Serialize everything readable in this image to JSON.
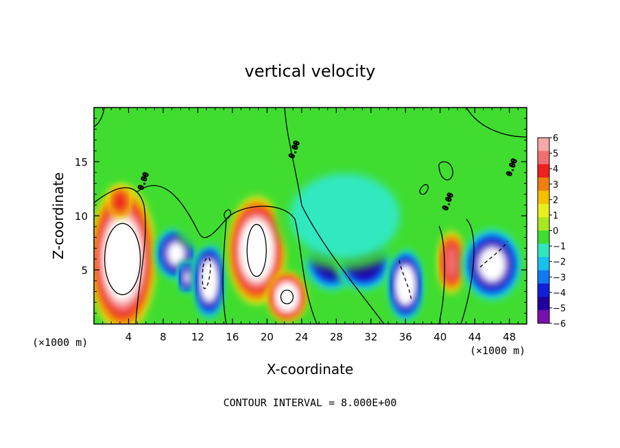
{
  "chart_data": {
    "type": "heatmap",
    "title": "vertical velocity",
    "xlabel": "X-coordinate",
    "ylabel": "Z-coordinate",
    "x_unit_left": "(×1000 m)",
    "x_unit_right": "(×1000 m)",
    "xlim": [
      0,
      50
    ],
    "ylim": [
      0,
      20
    ],
    "x_ticks": [
      4,
      8,
      12,
      16,
      20,
      24,
      28,
      32,
      36,
      40,
      44,
      48
    ],
    "y_ticks": [
      5,
      10,
      15
    ],
    "colorbar": {
      "levels": [
        6,
        5,
        4,
        3,
        2,
        1,
        0,
        -1,
        -2,
        -3,
        -4,
        -5,
        -6
      ],
      "labels": [
        "6",
        "5",
        "4",
        "3",
        "2",
        "1",
        "0",
        "−1",
        "−2",
        "−3",
        "−4",
        "−5",
        "−6"
      ],
      "colors": [
        "#f7a8a8",
        "#f07070",
        "#ee2020",
        "#f08010",
        "#f5c000",
        "#e8ee20",
        "#a8e820",
        "#40dd30",
        "#30e8c0",
        "#18c0f0",
        "#1078f0",
        "#1020d8",
        "#2000a0",
        "#7a10b0"
      ]
    },
    "contour_label": "0.00",
    "footer": "CONTOUR INTERVAL = 8.000E+00",
    "cells": [
      {
        "x": 3.3,
        "z": 6.0,
        "rx": 2.8,
        "rz": 5.5,
        "w": 9
      },
      {
        "x": 3.0,
        "z": 11.3,
        "rx": 0.9,
        "rz": 1.2,
        "w": 4
      },
      {
        "x": 9.5,
        "z": 6.5,
        "rx": 1.8,
        "rz": 2.0,
        "w": -7
      },
      {
        "x": 10.8,
        "z": 4.3,
        "rx": 0.8,
        "rz": 1.2,
        "w": -7
      },
      {
        "x": 13.3,
        "z": 4.0,
        "rx": 1.3,
        "rz": 3.0,
        "w": -8
      },
      {
        "x": 18.8,
        "z": 6.8,
        "rx": 2.4,
        "rz": 4.0,
        "w": 8
      },
      {
        "x": 22.3,
        "z": 2.5,
        "rx": 1.6,
        "rz": 1.8,
        "w": 8
      },
      {
        "x": 27.5,
        "z": 6.0,
        "rx": 2.5,
        "rz": 2.5,
        "w": -6
      },
      {
        "x": 31.2,
        "z": 5.8,
        "rx": 2.5,
        "rz": 2.3,
        "w": -6
      },
      {
        "x": 36.0,
        "z": 3.6,
        "rx": 1.5,
        "rz": 2.8,
        "w": -8
      },
      {
        "x": 41.3,
        "z": 5.7,
        "rx": 1.1,
        "rz": 2.3,
        "w": 5
      },
      {
        "x": 46.0,
        "z": 5.5,
        "rx": 2.6,
        "rz": 2.8,
        "w": -7
      },
      {
        "x": 29.0,
        "z": 10.0,
        "rx": 6.0,
        "rz": 4.0,
        "w": -2
      },
      {
        "x": 12.0,
        "z": 9.5,
        "rx": 2.0,
        "rz": 2.0,
        "w": -1
      },
      {
        "x": 48.0,
        "z": 12.5,
        "rx": 1.5,
        "rz": 2.5,
        "w": -1
      }
    ]
  }
}
